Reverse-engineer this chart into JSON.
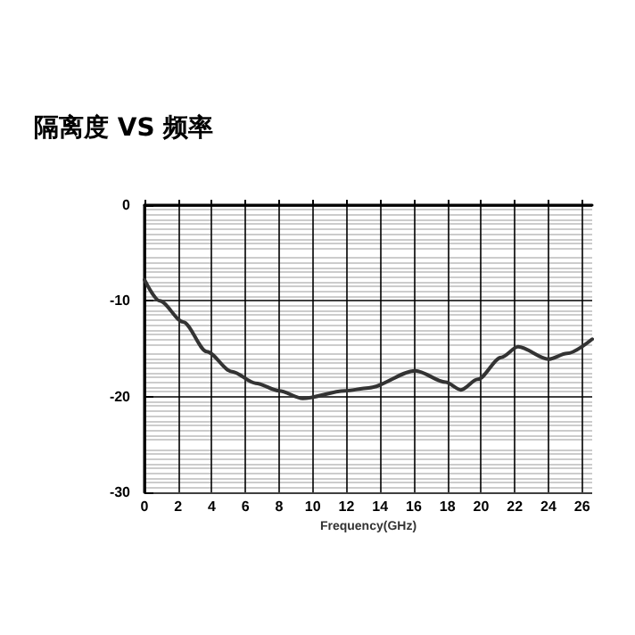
{
  "chart_data": {
    "type": "line",
    "title": "隔离度 VS 频率",
    "xlabel": "Frequency(GHz)",
    "x": [
      0,
      0.9,
      2.3,
      3.7,
      5.2,
      6.6,
      8.0,
      9.4,
      11.9,
      13.3,
      16.1,
      17.9,
      18.8,
      19.8,
      21.2,
      22.2,
      24.0,
      25.1,
      26.6
    ],
    "series": [
      {
        "color": "#333333",
        "values": [
          -7.8,
          -10,
          -12.2,
          -15.3,
          -17.4,
          -18.6,
          -19.4,
          -20.2,
          -19.4,
          -19.1,
          -17.3,
          -18.5,
          -19.3,
          -18.2,
          -15.9,
          -14.8,
          -16.1,
          -15.5,
          -14.0
        ]
      }
    ],
    "xlim": [
      0,
      26.6
    ],
    "xticks": [
      0,
      2,
      4,
      6,
      8,
      10,
      12,
      14,
      16,
      18,
      20,
      22,
      24,
      26
    ],
    "ylim": [
      -30,
      0
    ],
    "yticks": [
      -30,
      -20,
      -10,
      0
    ],
    "grid": true,
    "marker": "none",
    "line_style": "solid"
  }
}
